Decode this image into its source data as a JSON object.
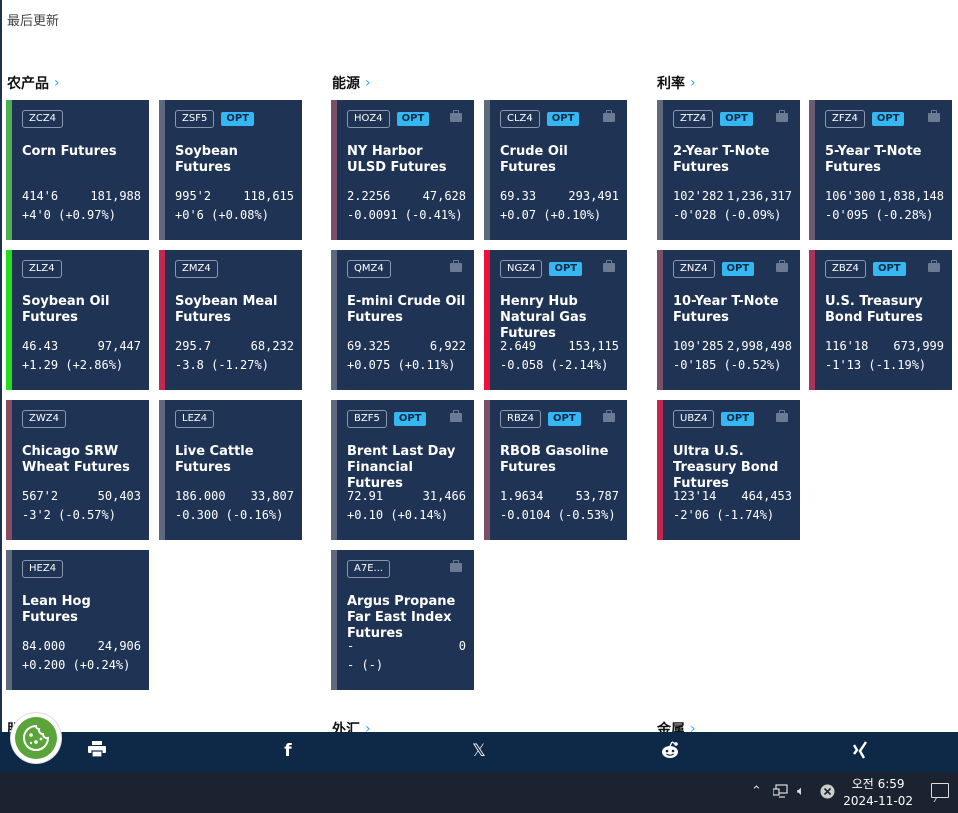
{
  "header": {
    "last_updated": "最后更新"
  },
  "sections": {
    "agri": "农产品",
    "energy": "能源",
    "rates": "利率",
    "bottom_left": "股",
    "fx": "外汇",
    "metals": "金属"
  },
  "cards": {
    "zcz4": {
      "code": "ZCZ4",
      "opt": "",
      "name": "Corn Futures",
      "last": "414'6",
      "volume": "181,988",
      "change": "+4'0 (+0.97%)",
      "bar_color": "#4caf50"
    },
    "zsf5": {
      "code": "ZSF5",
      "opt": "OPT",
      "name": "Soybean Futures",
      "last": "995'2",
      "volume": "118,615",
      "change": "+0'6 (+0.08%)",
      "bar_color": "#5e6a7c"
    },
    "zlz4": {
      "code": "ZLZ4",
      "opt": "",
      "name": "Soybean Oil Futures",
      "last": "46.43",
      "volume": "97,447",
      "change": "+1.29 (+2.86%)",
      "bar_color": "#22e01e"
    },
    "zmz4": {
      "code": "ZMZ4",
      "opt": "",
      "name": "Soybean Meal Futures",
      "last": "295.7",
      "volume": "68,232",
      "change": "-3.8 (-1.27%)",
      "bar_color": "#c2284f"
    },
    "zwz4": {
      "code": "ZWZ4",
      "opt": "",
      "name": "Chicago SRW Wheat Futures",
      "last": "567'2",
      "volume": "50,403",
      "change": "-3'2 (-0.57%)",
      "bar_color": "#8a4a62"
    },
    "lez4": {
      "code": "LEZ4",
      "opt": "",
      "name": "Live Cattle Futures",
      "last": "186.000",
      "volume": "33,807",
      "change": "-0.300 (-0.16%)",
      "bar_color": "#5e6a7c"
    },
    "hez4": {
      "code": "HEZ4",
      "opt": "",
      "name": "Lean Hog Futures",
      "last": "84.000",
      "volume": "24,906",
      "change": "+0.200 (+0.24%)",
      "bar_color": "#5e6a7c"
    },
    "hoz4": {
      "code": "HOZ4",
      "opt": "OPT",
      "name": "NY Harbor ULSD Futures",
      "last": "2.2256",
      "volume": "47,628",
      "change": "-0.0091 (-0.41%)",
      "bar_color": "#7a5068"
    },
    "clz4": {
      "code": "CLZ4",
      "opt": "OPT",
      "name": "Crude Oil Futures",
      "last": "69.33",
      "volume": "293,491",
      "change": "+0.07 (+0.10%)",
      "bar_color": "#5e6a7c"
    },
    "qmz4": {
      "code": "QMZ4",
      "opt": "",
      "name": "E-mini Crude Oil Futures",
      "last": "69.325",
      "volume": "6,922",
      "change": "+0.075 (+0.11%)",
      "bar_color": "#5e6a7c"
    },
    "ngz4": {
      "code": "NGZ4",
      "opt": "OPT",
      "name": "Henry Hub Natural Gas Futures",
      "last": "2.649",
      "volume": "153,115",
      "change": "-0.058 (-2.14%)",
      "bar_color": "#e8123a"
    },
    "bzf5": {
      "code": "BZF5",
      "opt": "OPT",
      "name": "Brent Last Day Financial Futures",
      "last": "72.91",
      "volume": "31,466",
      "change": "+0.10 (+0.14%)",
      "bar_color": "#5e6a7c"
    },
    "rbz4": {
      "code": "RBZ4",
      "opt": "OPT",
      "name": "RBOB Gasoline Futures",
      "last": "1.9634",
      "volume": "53,787",
      "change": "-0.0104 (-0.53%)",
      "bar_color": "#7a5068"
    },
    "a7e": {
      "code": "A7E...",
      "opt": "",
      "name": "Argus Propane Far East Index Futures",
      "last": "-",
      "volume": "0",
      "change": "- (-)",
      "bar_color": "#5e6a7c"
    },
    "ztz4": {
      "code": "ZTZ4",
      "opt": "OPT",
      "name": "2-Year T-Note Futures",
      "last": "102'282",
      "volume": "1,236,317",
      "change": "-0'028 (-0.09%)",
      "bar_color": "#5e6a7c"
    },
    "zfz4": {
      "code": "ZFZ4",
      "opt": "OPT",
      "name": "5-Year T-Note Futures",
      "last": "106'300",
      "volume": "1,838,148",
      "change": "-0'095 (-0.28%)",
      "bar_color": "#6a5a74"
    },
    "znz4": {
      "code": "ZNZ4",
      "opt": "OPT",
      "name": "10-Year T-Note Futures",
      "last": "109'285",
      "volume": "2,998,498",
      "change": "-0'185 (-0.52%)",
      "bar_color": "#7a5068"
    },
    "zbz4": {
      "code": "ZBZ4",
      "opt": "OPT",
      "name": "U.S. Treasury Bond Futures",
      "last": "116'18",
      "volume": "673,999",
      "change": "-1'13 (-1.19%)",
      "bar_color": "#a8345e"
    },
    "ubz4": {
      "code": "UBZ4",
      "opt": "OPT",
      "name": "Ultra U.S. Treasury Bond Futures",
      "last": "123'14",
      "volume": "464,453",
      "change": "-2'06 (-1.74%)",
      "bar_color": "#c2284f"
    }
  },
  "share": {
    "print_icon": "print-icon",
    "facebook_icon": "facebook-icon",
    "x_icon": "x-icon",
    "reddit_icon": "reddit-icon",
    "xing_icon": "xing-icon"
  },
  "taskbar": {
    "time": "오전 6:59",
    "date": "2024-11-02"
  },
  "colors": {
    "card_bg": "#1f3355",
    "accent": "#35b8f2",
    "share_bar": "#0e2848",
    "taskbar": "#1b2331"
  }
}
